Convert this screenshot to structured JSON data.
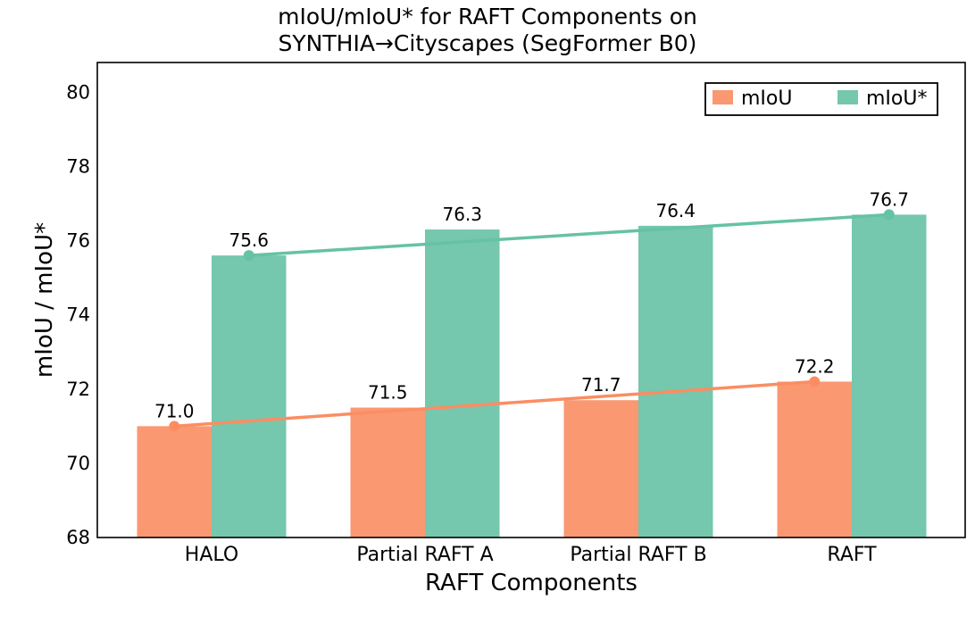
{
  "chart_data": {
    "type": "bar",
    "title": [
      "mIoU/mIoU* for RAFT Components on",
      "SYNTHIA→Cityscapes (SegFormer B0)"
    ],
    "xlabel": "RAFT Components",
    "ylabel": "mIoU / mIoU*",
    "ylim": [
      68,
      80.8
    ],
    "yticks": [
      68,
      70,
      72,
      74,
      76,
      78,
      80
    ],
    "categories": [
      "HALO",
      "Partial RAFT A",
      "Partial RAFT B",
      "RAFT"
    ],
    "series": [
      {
        "name": "mIoU",
        "values": [
          71.0,
          71.5,
          71.7,
          72.2
        ],
        "labels": [
          "71.0",
          "71.5",
          "71.7",
          "72.2"
        ],
        "color": "#fc8d62",
        "bar_color": "#fa9872"
      },
      {
        "name": "mIoU*",
        "values": [
          75.6,
          76.3,
          76.4,
          76.7
        ],
        "labels": [
          "75.6",
          "76.3",
          "76.4",
          "76.7"
        ],
        "color": "#66c2a5",
        "bar_color": "#75c7ad"
      }
    ],
    "trend_lines": [
      {
        "series": "mIoU",
        "from": 71.0,
        "to": 72.2
      },
      {
        "series": "mIoU*",
        "from": 75.6,
        "to": 76.7
      }
    ],
    "legend": {
      "position": "top-right",
      "entries": [
        "mIoU",
        "mIoU*"
      ]
    },
    "grid": false
  }
}
